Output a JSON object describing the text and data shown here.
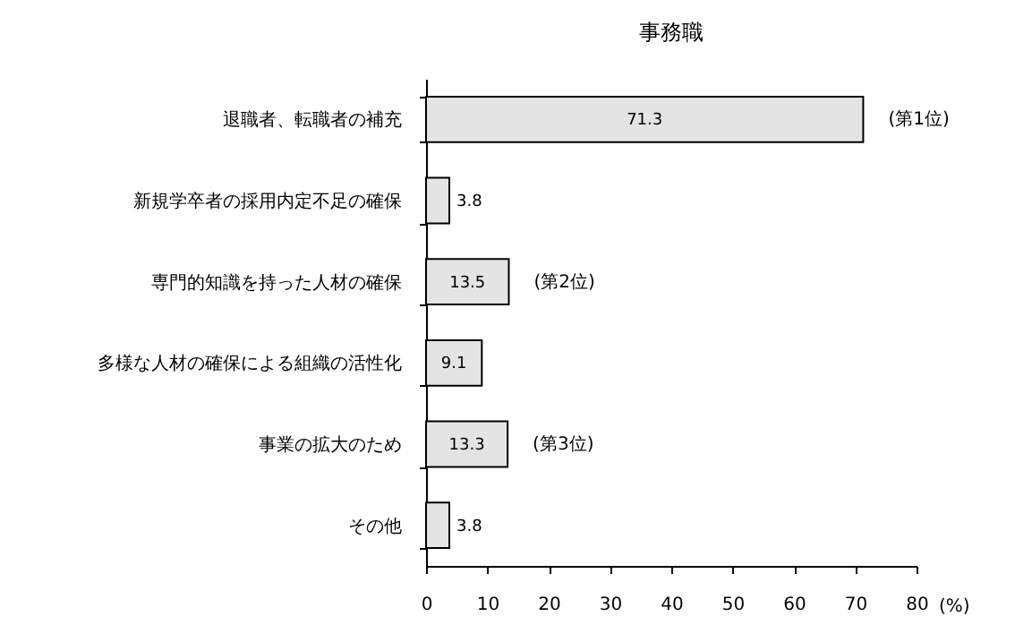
{
  "chart_data": {
    "type": "bar",
    "orientation": "horizontal",
    "title": "事務職",
    "xlabel": "(%)",
    "categories": [
      "退職者、転職者の補充",
      "新規学卒者の採用内定不足の確保",
      "専門的知識を持った人材の確保",
      "多様な人材の確保による組織の活性化",
      "事業の拡大のため",
      "その他"
    ],
    "values": [
      71.3,
      3.8,
      13.5,
      9.1,
      13.3,
      3.8
    ],
    "color": "#e4e4e4",
    "xlim": [
      0,
      80
    ],
    "xticks": [
      0,
      10,
      20,
      30,
      40,
      50,
      60,
      70,
      80
    ],
    "data_labels": true,
    "grid": false,
    "annotations": [
      {
        "text": "(第1位)",
        "x": 71.3,
        "y": "退職者、転職者の補充"
      },
      {
        "text": "(第2位)",
        "x": 13.5,
        "y": "専門的知識を持った人材の確保"
      },
      {
        "text": "(第3位)",
        "x": 13.3,
        "y": "事業の拡大のため"
      }
    ]
  }
}
